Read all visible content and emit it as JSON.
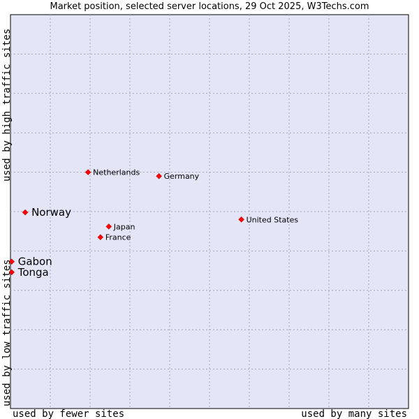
{
  "chart_data": {
    "type": "scatter",
    "title": "Market position, selected server locations, 29 Oct 2025, W3Techs.com",
    "xlabel_left": "used by fewer sites",
    "xlabel_right": "used by many sites",
    "ylabel_bottom": "used by low traffic sites",
    "ylabel_top": "used by high traffic sites",
    "xlim": [
      0,
      100
    ],
    "ylim": [
      0,
      100
    ],
    "grid": true,
    "colors": {
      "plot_bg": "#e4e6f8",
      "grid": "#a6a6b8",
      "point": "#ff0000"
    },
    "points": [
      {
        "label": "Netherlands",
        "x": 19.5,
        "y": 60.0,
        "emphasis": false
      },
      {
        "label": "Germany",
        "x": 37.3,
        "y": 59.0,
        "emphasis": false
      },
      {
        "label": "Norway",
        "x": 3.7,
        "y": 49.8,
        "emphasis": true
      },
      {
        "label": "United States",
        "x": 58.0,
        "y": 48.0,
        "emphasis": false
      },
      {
        "label": "Japan",
        "x": 24.7,
        "y": 46.2,
        "emphasis": false
      },
      {
        "label": "France",
        "x": 22.6,
        "y": 43.5,
        "emphasis": false
      },
      {
        "label": "Gabon",
        "x": 0.3,
        "y": 37.3,
        "emphasis": true
      },
      {
        "label": "Tonga",
        "x": 0.3,
        "y": 34.6,
        "emphasis": true
      }
    ]
  }
}
